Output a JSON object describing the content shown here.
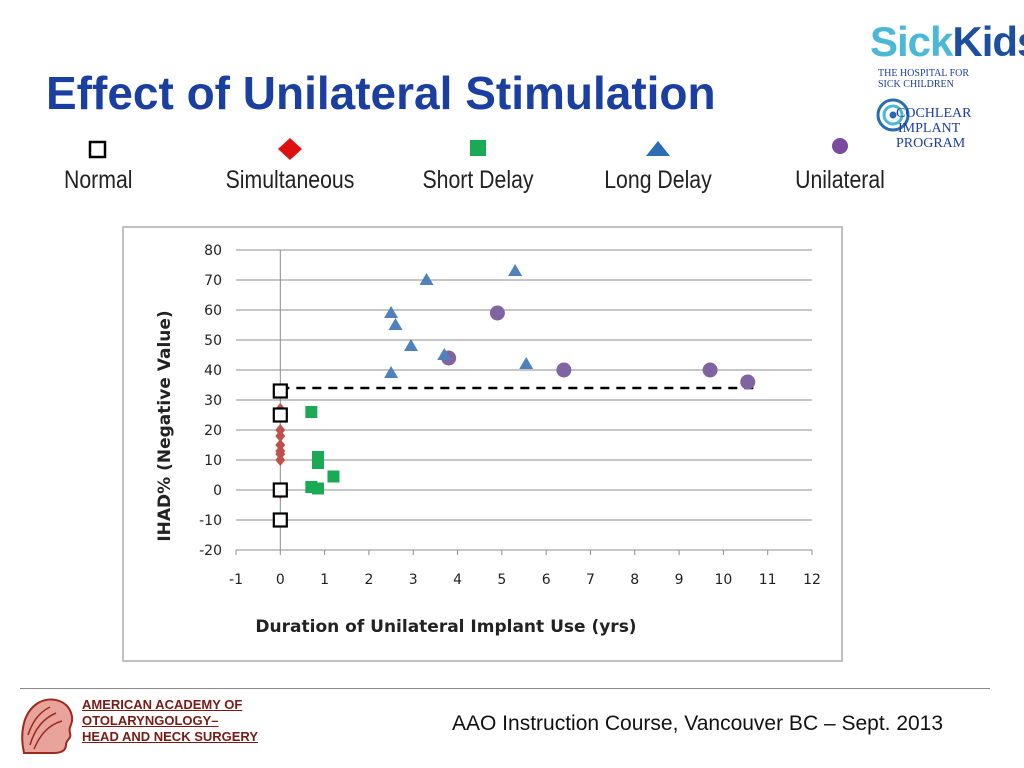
{
  "slide": {
    "title": "Effect of Unilateral Stimulation",
    "footer": "AAO Instruction Course, Vancouver BC – Sept. 2013"
  },
  "logos": {
    "sickkids_word_a": "Sick",
    "sickkids_word_b": "Kids",
    "sickkids_line1": "THE HOSPITAL FOR",
    "sickkids_line2": "SICK CHILDREN",
    "cip_line1": "COCHLEAR",
    "cip_line2": "IMPLANT",
    "cip_line3": "PROGRAM",
    "aao_line1": "AMERICAN ACADEMY OF",
    "aao_line2": "OTOLARYNGOLOGY–",
    "aao_line3": "HEAD AND NECK SURGERY"
  },
  "legend": [
    {
      "label": "Normal",
      "marker": "square-open",
      "color": "#000000"
    },
    {
      "label": "Simultaneous",
      "marker": "diamond",
      "color": "#e01010"
    },
    {
      "label": "Short Delay",
      "marker": "square",
      "color": "#1aaa55"
    },
    {
      "label": "Long Delay",
      "marker": "triangle",
      "color": "#2d6db5"
    },
    {
      "label": "Unilateral",
      "marker": "circle",
      "color": "#7a4aa0"
    }
  ],
  "chart_data": {
    "type": "scatter",
    "xlabel": "Duration of Unilateral Implant Use (yrs)",
    "ylabel": "IHAD% (Negative Value)",
    "xlim": [
      -1,
      12
    ],
    "ylim": [
      -20,
      80
    ],
    "xticks": [
      -1,
      0,
      1,
      2,
      3,
      4,
      5,
      6,
      7,
      8,
      9,
      10,
      11,
      12
    ],
    "yticks": [
      -20,
      -10,
      0,
      10,
      20,
      30,
      40,
      50,
      60,
      70,
      80
    ],
    "grid": "horizontal",
    "reference_line": {
      "y": 34,
      "x_from": 0,
      "x_to": 10.8,
      "style": "dashed"
    },
    "series": [
      {
        "name": "Normal",
        "color": "#000000",
        "marker": "square-open",
        "x": [
          0,
          0,
          0,
          0
        ],
        "y": [
          33,
          25,
          0,
          -10
        ]
      },
      {
        "name": "Simultaneous",
        "color": "#c0504d",
        "marker": "diamond",
        "x": [
          0,
          0,
          0,
          0,
          0,
          0,
          0,
          0
        ],
        "y": [
          27,
          20,
          18,
          15,
          13,
          12,
          10,
          -1
        ]
      },
      {
        "name": "Short Delay",
        "color": "#1aaa55",
        "marker": "square",
        "x": [
          0.7,
          0.85,
          0.85,
          0.7,
          0.85,
          1.2
        ],
        "y": [
          26,
          11,
          9,
          1,
          0.5,
          4.5
        ]
      },
      {
        "name": "Long Delay",
        "color": "#4f81bd",
        "marker": "triangle",
        "x": [
          2.5,
          2.6,
          2.5,
          2.95,
          3.3,
          3.7,
          5.3,
          5.55
        ],
        "y": [
          59,
          55,
          39,
          48,
          70,
          45,
          73,
          42
        ]
      },
      {
        "name": "Unilateral",
        "color": "#8064a2",
        "marker": "circle",
        "x": [
          3.8,
          4.9,
          6.4,
          9.7,
          10.55
        ],
        "y": [
          44,
          59,
          40,
          40,
          36
        ]
      }
    ]
  }
}
